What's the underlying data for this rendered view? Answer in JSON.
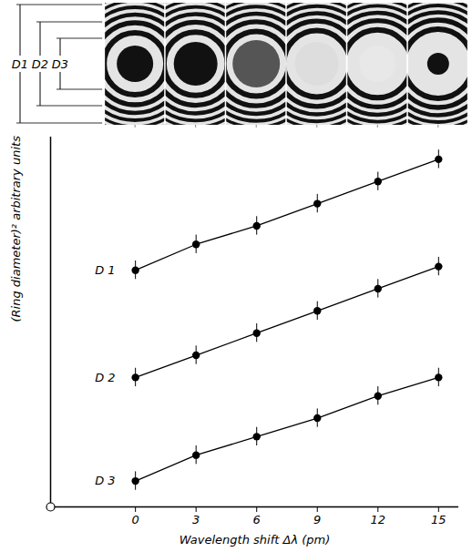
{
  "chart_data": {
    "type": "line",
    "x_label": "Wavelength shift Δλ (pm)",
    "y_label": "(Ring diameter)² arbitrary units",
    "x": [
      0,
      3,
      6,
      9,
      12,
      15
    ],
    "series": [
      {
        "name": "D 1",
        "color": "#000000",
        "marker": "circle",
        "values": [
          64,
          71,
          76,
          82,
          88,
          94
        ],
        "errors": [
          2.5,
          2.5,
          2.5,
          2.5,
          2.5,
          2.5
        ]
      },
      {
        "name": "D 2",
        "color": "#000000",
        "marker": "circle",
        "values": [
          35,
          41,
          47,
          53,
          59,
          65
        ],
        "errors": [
          2.5,
          2.5,
          2.5,
          2.5,
          2.5,
          2.5
        ]
      },
      {
        "name": "D 3",
        "color": "#000000",
        "marker": "circle",
        "values": [
          7,
          14,
          19,
          24,
          30,
          35
        ],
        "errors": [
          2.5,
          2.5,
          2.5,
          2.5,
          2.5,
          2.5
        ]
      }
    ],
    "xlim": [
      -4.2,
      16
    ],
    "xticks": [
      0,
      3,
      6,
      9,
      12,
      15
    ],
    "ylim": [
      0,
      100
    ],
    "yticks": [],
    "tick_labels": "x",
    "annotations": [
      "D1",
      "D2",
      "D3"
    ]
  }
}
